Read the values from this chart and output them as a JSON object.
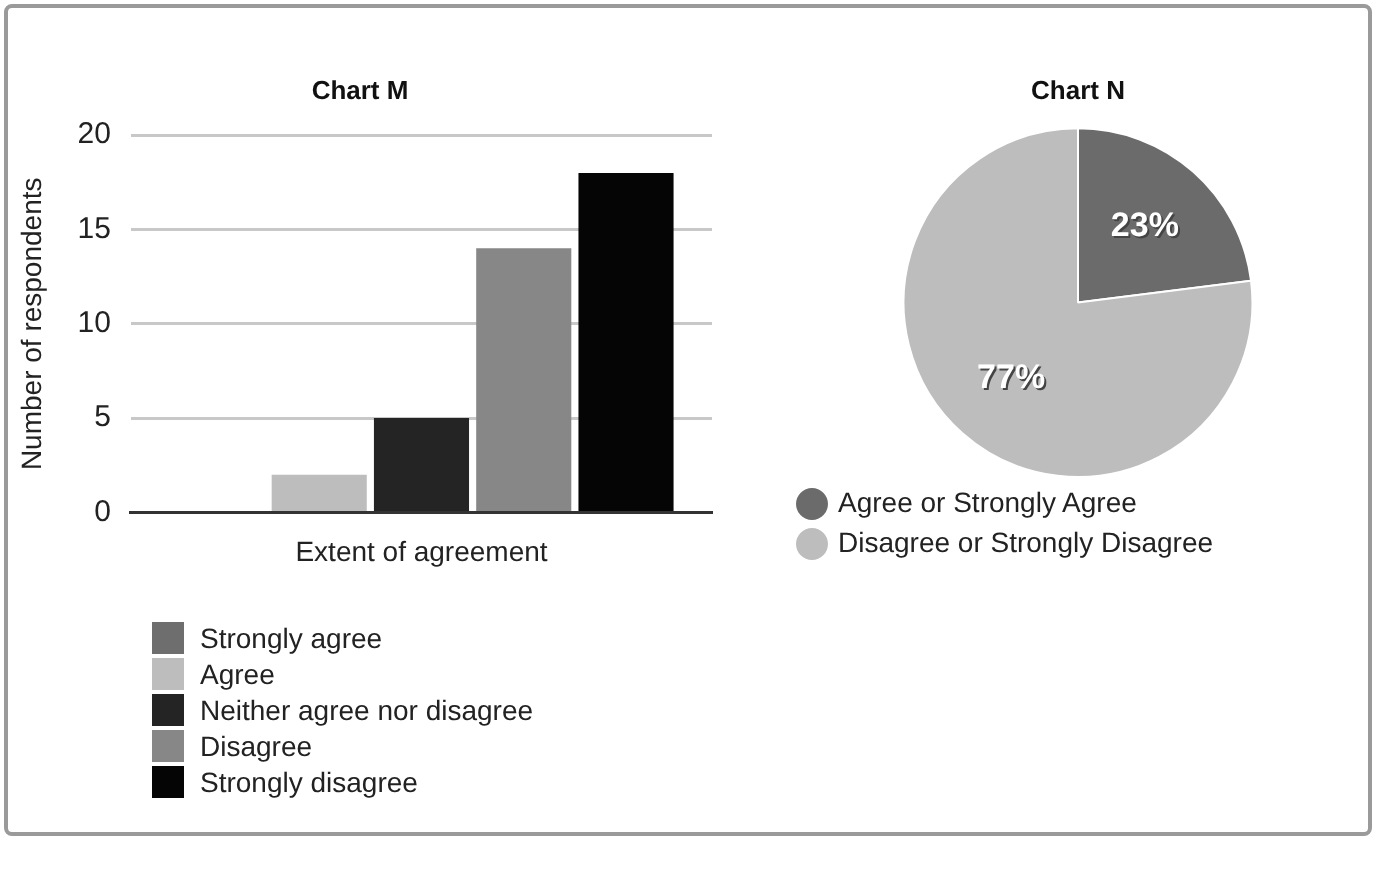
{
  "chart_data": [
    {
      "type": "bar",
      "title": "Chart M",
      "xlabel": "Extent of agreement",
      "ylabel": "Number of respondents",
      "categories": [
        null
      ],
      "ylim": [
        0,
        20
      ],
      "yticks": [
        0,
        5,
        10,
        15,
        20
      ],
      "grid": "y",
      "legend": "bottom left",
      "series": [
        {
          "name": "Strongly agree",
          "color": "#6e6e6e",
          "values": [
            0
          ]
        },
        {
          "name": "Agree",
          "color": "#bdbdbd",
          "values": [
            2
          ]
        },
        {
          "name": "Neither agree nor disagree",
          "color": "#242424",
          "values": [
            5
          ]
        },
        {
          "name": "Disagree",
          "color": "#878787",
          "values": [
            14
          ]
        },
        {
          "name": "Strongly disagree",
          "color": "#050505",
          "values": [
            18
          ]
        }
      ]
    },
    {
      "type": "pie",
      "title": "Chart N",
      "categories": [
        "Agree or Strongly Agree",
        "Disagree or Strongly Disagree"
      ],
      "values": [
        23,
        77
      ],
      "colors": [
        "#6b6b6b",
        "#bdbdbd"
      ],
      "value_labels": [
        "23%",
        "77%"
      ],
      "legend": "bottom"
    }
  ]
}
